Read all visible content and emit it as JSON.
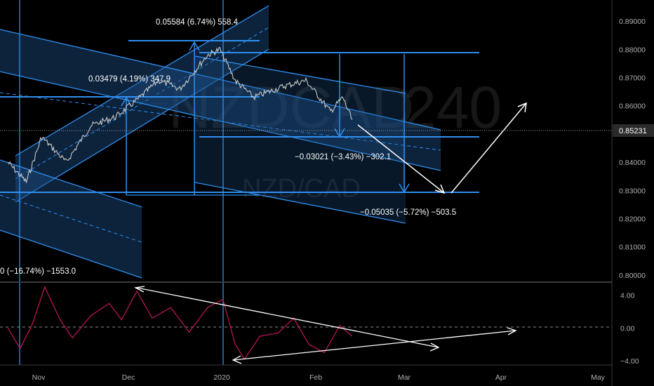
{
  "watermark": {
    "symbol": "NZDCAD",
    "interval": "240",
    "pair": "NZD/CAD"
  },
  "colors": {
    "background": "#000000",
    "drawing": "#2f8ff0",
    "channel_fill": "#1c4e86",
    "price_line": "#c8c8c8",
    "oscillator": "#c2185b",
    "annotation": "#ffffff",
    "axis_text": "#b0b0b0",
    "price_badge": "#2b2b2b"
  },
  "chart_data": [
    {
      "type": "line",
      "name": "price",
      "ylim": [
        0.7975,
        0.8975
      ],
      "y_ticks": [
        0.8,
        0.81,
        0.82,
        0.83,
        0.84,
        0.85,
        0.86,
        0.87,
        0.88,
        0.89
      ],
      "y_tick_labels": [
        "0.80000",
        "0.81000",
        "0.82000",
        "0.83000",
        "0.84000",
        "0.85000",
        "0.86000",
        "0.87000",
        "0.88000",
        "0.89000"
      ],
      "current_price": "0.85231",
      "x_ticks": [
        "Nov",
        "Dec",
        "2020",
        "Feb",
        "Mar",
        "Apr",
        "May"
      ],
      "approx_path": [
        {
          "x": "2019-10-22",
          "y": 0.84
        },
        {
          "x": "2019-10-28",
          "y": 0.833
        },
        {
          "x": "2019-11-02",
          "y": 0.849
        },
        {
          "x": "2019-11-10",
          "y": 0.84
        },
        {
          "x": "2019-11-18",
          "y": 0.853
        },
        {
          "x": "2019-11-26",
          "y": 0.856
        },
        {
          "x": "2019-12-03",
          "y": 0.862
        },
        {
          "x": "2019-12-10",
          "y": 0.869
        },
        {
          "x": "2019-12-17",
          "y": 0.866
        },
        {
          "x": "2019-12-26",
          "y": 0.878
        },
        {
          "x": "2019-12-30",
          "y": 0.88
        },
        {
          "x": "2020-01-04",
          "y": 0.869
        },
        {
          "x": "2020-01-10",
          "y": 0.863
        },
        {
          "x": "2020-01-20",
          "y": 0.867
        },
        {
          "x": "2020-01-27",
          "y": 0.869
        },
        {
          "x": "2020-02-04",
          "y": 0.858
        },
        {
          "x": "2020-02-08",
          "y": 0.863
        },
        {
          "x": "2020-02-11",
          "y": 0.855
        }
      ],
      "annotations": [
        "0.05584 (6.74%) 558.4",
        "0.03479 (4.19%) 347.9",
        "−0.03021 (−3.43%) −302.1",
        "−0.05035 (−5.72%) −503.5",
        "0 (−16.74%) −1553.0"
      ]
    },
    {
      "type": "line",
      "name": "oscillator",
      "ylim": [
        -4.5,
        5.5
      ],
      "y_ticks": [
        4.0,
        0.0,
        -4.0
      ],
      "y_tick_labels": [
        "4.00",
        "0.00",
        "−4.00"
      ],
      "approx_path": [
        {
          "x": "2019-10-22",
          "y": 0.0
        },
        {
          "x": "2019-10-26",
          "y": -2.5
        },
        {
          "x": "2019-10-30",
          "y": 0.5
        },
        {
          "x": "2019-11-03",
          "y": 5.0
        },
        {
          "x": "2019-11-08",
          "y": 1.0
        },
        {
          "x": "2019-11-12",
          "y": -1.2
        },
        {
          "x": "2019-11-18",
          "y": 1.5
        },
        {
          "x": "2019-11-24",
          "y": 3.0
        },
        {
          "x": "2019-11-28",
          "y": 1.0
        },
        {
          "x": "2019-12-03",
          "y": 4.5
        },
        {
          "x": "2019-12-08",
          "y": 1.2
        },
        {
          "x": "2019-12-14",
          "y": 2.5
        },
        {
          "x": "2019-12-20",
          "y": -0.5
        },
        {
          "x": "2019-12-26",
          "y": 2.5
        },
        {
          "x": "2019-12-31",
          "y": 3.5
        },
        {
          "x": "2020-01-04",
          "y": -2.0
        },
        {
          "x": "2020-01-07",
          "y": -3.8
        },
        {
          "x": "2020-01-12",
          "y": -1.0
        },
        {
          "x": "2020-01-18",
          "y": -0.6
        },
        {
          "x": "2020-01-23",
          "y": 1.2
        },
        {
          "x": "2020-01-28",
          "y": -2.0
        },
        {
          "x": "2020-02-02",
          "y": -3.0
        },
        {
          "x": "2020-02-07",
          "y": 0.3
        },
        {
          "x": "2020-02-11",
          "y": -1.0
        }
      ]
    }
  ]
}
